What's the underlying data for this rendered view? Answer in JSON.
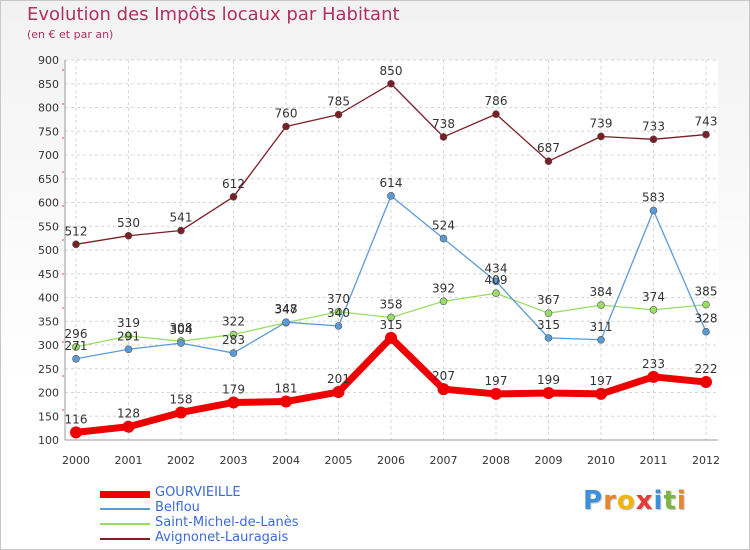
{
  "header": {
    "title": "Evolution des Impôts locaux par Habitant",
    "subtitle": "(en € et par an)"
  },
  "chart_data": {
    "type": "line",
    "title": "Evolution des Impôts locaux par Habitant",
    "subtitle": "(en € et par an)",
    "xlabel": "",
    "ylabel": "",
    "x": [
      "2000",
      "2001",
      "2002",
      "2003",
      "2004",
      "2005",
      "2006",
      "2007",
      "2008",
      "2009",
      "2010",
      "2011",
      "2012"
    ],
    "ylim": [
      100,
      900
    ],
    "yticks": [
      100,
      150,
      200,
      250,
      300,
      350,
      400,
      450,
      500,
      550,
      600,
      650,
      700,
      750,
      800,
      850,
      900
    ],
    "grid": true,
    "legend_position": "bottom-left",
    "series": [
      {
        "name": "GOURVIEILLE",
        "color": "#ee0000",
        "values": [
          116,
          128,
          158,
          179,
          181,
          201,
          315,
          207,
          197,
          199,
          197,
          233,
          222
        ]
      },
      {
        "name": "Belflou",
        "color": "#5b9bd5",
        "values": [
          271,
          291,
          304,
          283,
          348,
          340,
          614,
          524,
          434,
          315,
          311,
          583,
          328
        ]
      },
      {
        "name": "Saint-Michel-de-Lanès",
        "color": "#99dd66",
        "values": [
          296,
          319,
          308,
          322,
          347,
          370,
          358,
          392,
          409,
          367,
          384,
          374,
          385
        ]
      },
      {
        "name": "Avignonet-Lauragais",
        "color": "#7a1f25",
        "values": [
          512,
          530,
          541,
          612,
          760,
          785,
          850,
          738,
          786,
          687,
          739,
          733,
          743
        ]
      }
    ]
  },
  "logo": {
    "letters": [
      "P",
      "r",
      "o",
      "x",
      "i",
      "t",
      "i"
    ],
    "colors": [
      "#3c8fd8",
      "#e8862a",
      "#f2b400",
      "#e53935",
      "#3c8fd8",
      "#7cb342",
      "#e8862a"
    ]
  }
}
